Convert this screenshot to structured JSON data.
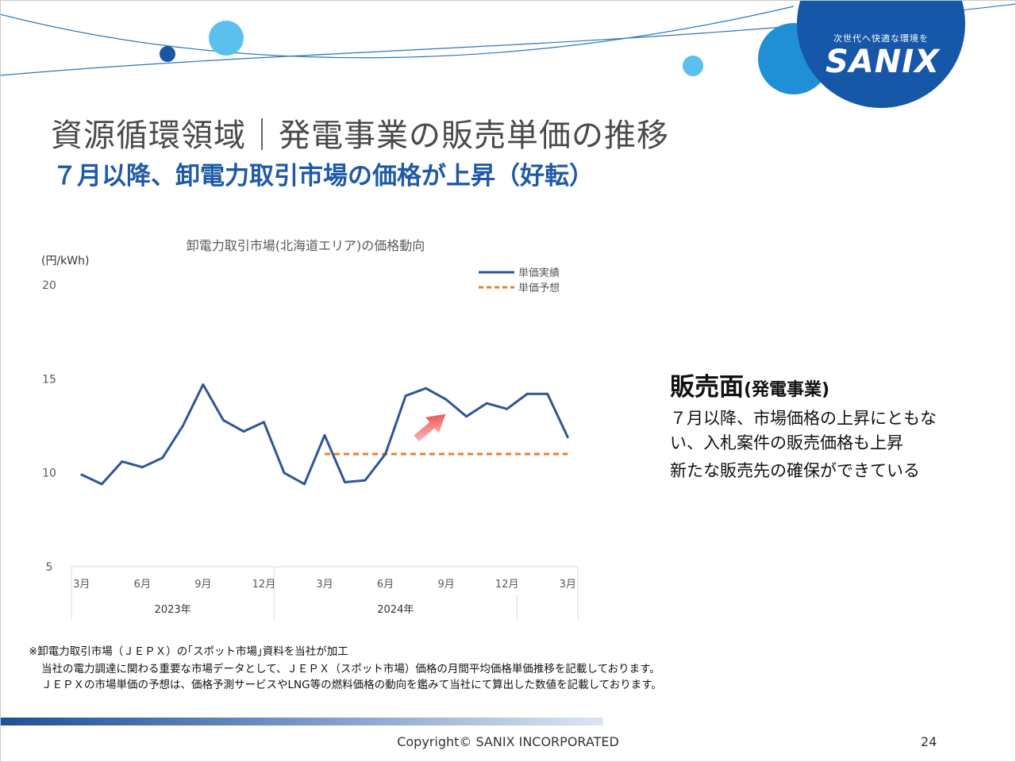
{
  "header": {
    "title": "資源循環領域｜発電事業の販売単価の推移",
    "subtitle": "７月以降、卸電力取引市場の価格が上昇（好転）"
  },
  "logo": {
    "tagline": "次世代へ快適な環境を",
    "wordmark": "SANIX"
  },
  "colors": {
    "accent": "#1f5aa6",
    "actual_line": "#2f5597",
    "forecast_line": "#ed7d31",
    "arrow": "#e53935",
    "deco_light": "#5bc0ee",
    "deco_dark": "#1a56a6"
  },
  "chart_data": {
    "type": "line",
    "title": "卸電力取引市場(北海道エリア)の価格動向",
    "ylabel": "(円/kWh)",
    "ylim": [
      5,
      20
    ],
    "yticks": [
      5,
      10,
      15,
      20
    ],
    "grid": false,
    "legend_position": "top-right",
    "x_tick_labels": [
      "3月",
      "6月",
      "9月",
      "12月",
      "3月",
      "6月",
      "9月",
      "12月",
      "3月"
    ],
    "year_labels": [
      "2023年",
      "2024年"
    ],
    "series": [
      {
        "name": "単価実績",
        "style": "solid",
        "values": [
          9.9,
          9.4,
          10.6,
          10.3,
          10.8,
          12.5,
          14.7,
          12.8,
          12.2,
          12.7,
          10.0,
          9.4,
          12.0,
          9.5,
          9.6,
          11.0,
          14.1,
          14.5,
          13.9,
          13.0,
          13.7,
          13.4,
          14.2,
          14.2,
          11.9
        ]
      },
      {
        "name": "単価予想",
        "style": "dashed",
        "start_index": 12,
        "values": [
          11.0,
          11.0,
          11.0,
          11.0,
          11.0,
          11.0,
          11.0,
          11.0,
          11.0,
          11.0,
          11.0,
          11.0,
          11.0
        ]
      }
    ],
    "annotation": "upward-arrow"
  },
  "side_panel": {
    "heading": "販売面",
    "heading_paren": "(発電事業)",
    "lines": [
      "７月以降、市場価格の上昇にともな",
      "い、入札案件の販売価格も上昇",
      "新たな販売先の確保ができている"
    ]
  },
  "notes": {
    "source": "※卸電力取引市場（ＪＥＰＸ）の｢スポット市場｣資料を当社が加工",
    "line1": "当社の電力調達に関わる重要な市場データとして、ＪＥＰＸ（スポット市場）価格の月間平均価格単価推移を記載しております。",
    "line2": "ＪＥＰＸの市場単価の予想は、価格予測サービスやLNG等の燃料価格の動向を鑑みて当社にて算出した数値を記載しております。"
  },
  "footer": {
    "copyright": "Copyright©  SANIX INCORPORATED",
    "page_number": "24"
  }
}
